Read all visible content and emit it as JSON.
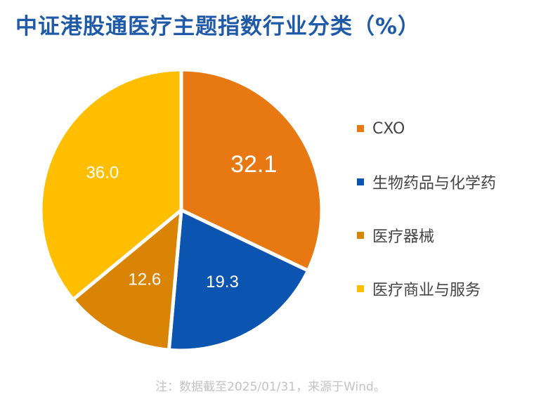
{
  "title": "中证港股通医疗主题指数行业分类（%）",
  "note": "注：数据截至2025/01/31，来源于Wind。",
  "chart_data": {
    "type": "pie",
    "categories": [
      "CXO",
      "生物药品与化学药",
      "医疗器械",
      "医疗商业与服务"
    ],
    "values": [
      32.1,
      19.3,
      12.6,
      36.0
    ],
    "labels": [
      "32.1",
      "19.3",
      "12.6",
      "36.0"
    ],
    "colors": [
      "#E87811",
      "#0B54B0",
      "#D98404",
      "#FFBF00"
    ],
    "legend_position": "right"
  }
}
